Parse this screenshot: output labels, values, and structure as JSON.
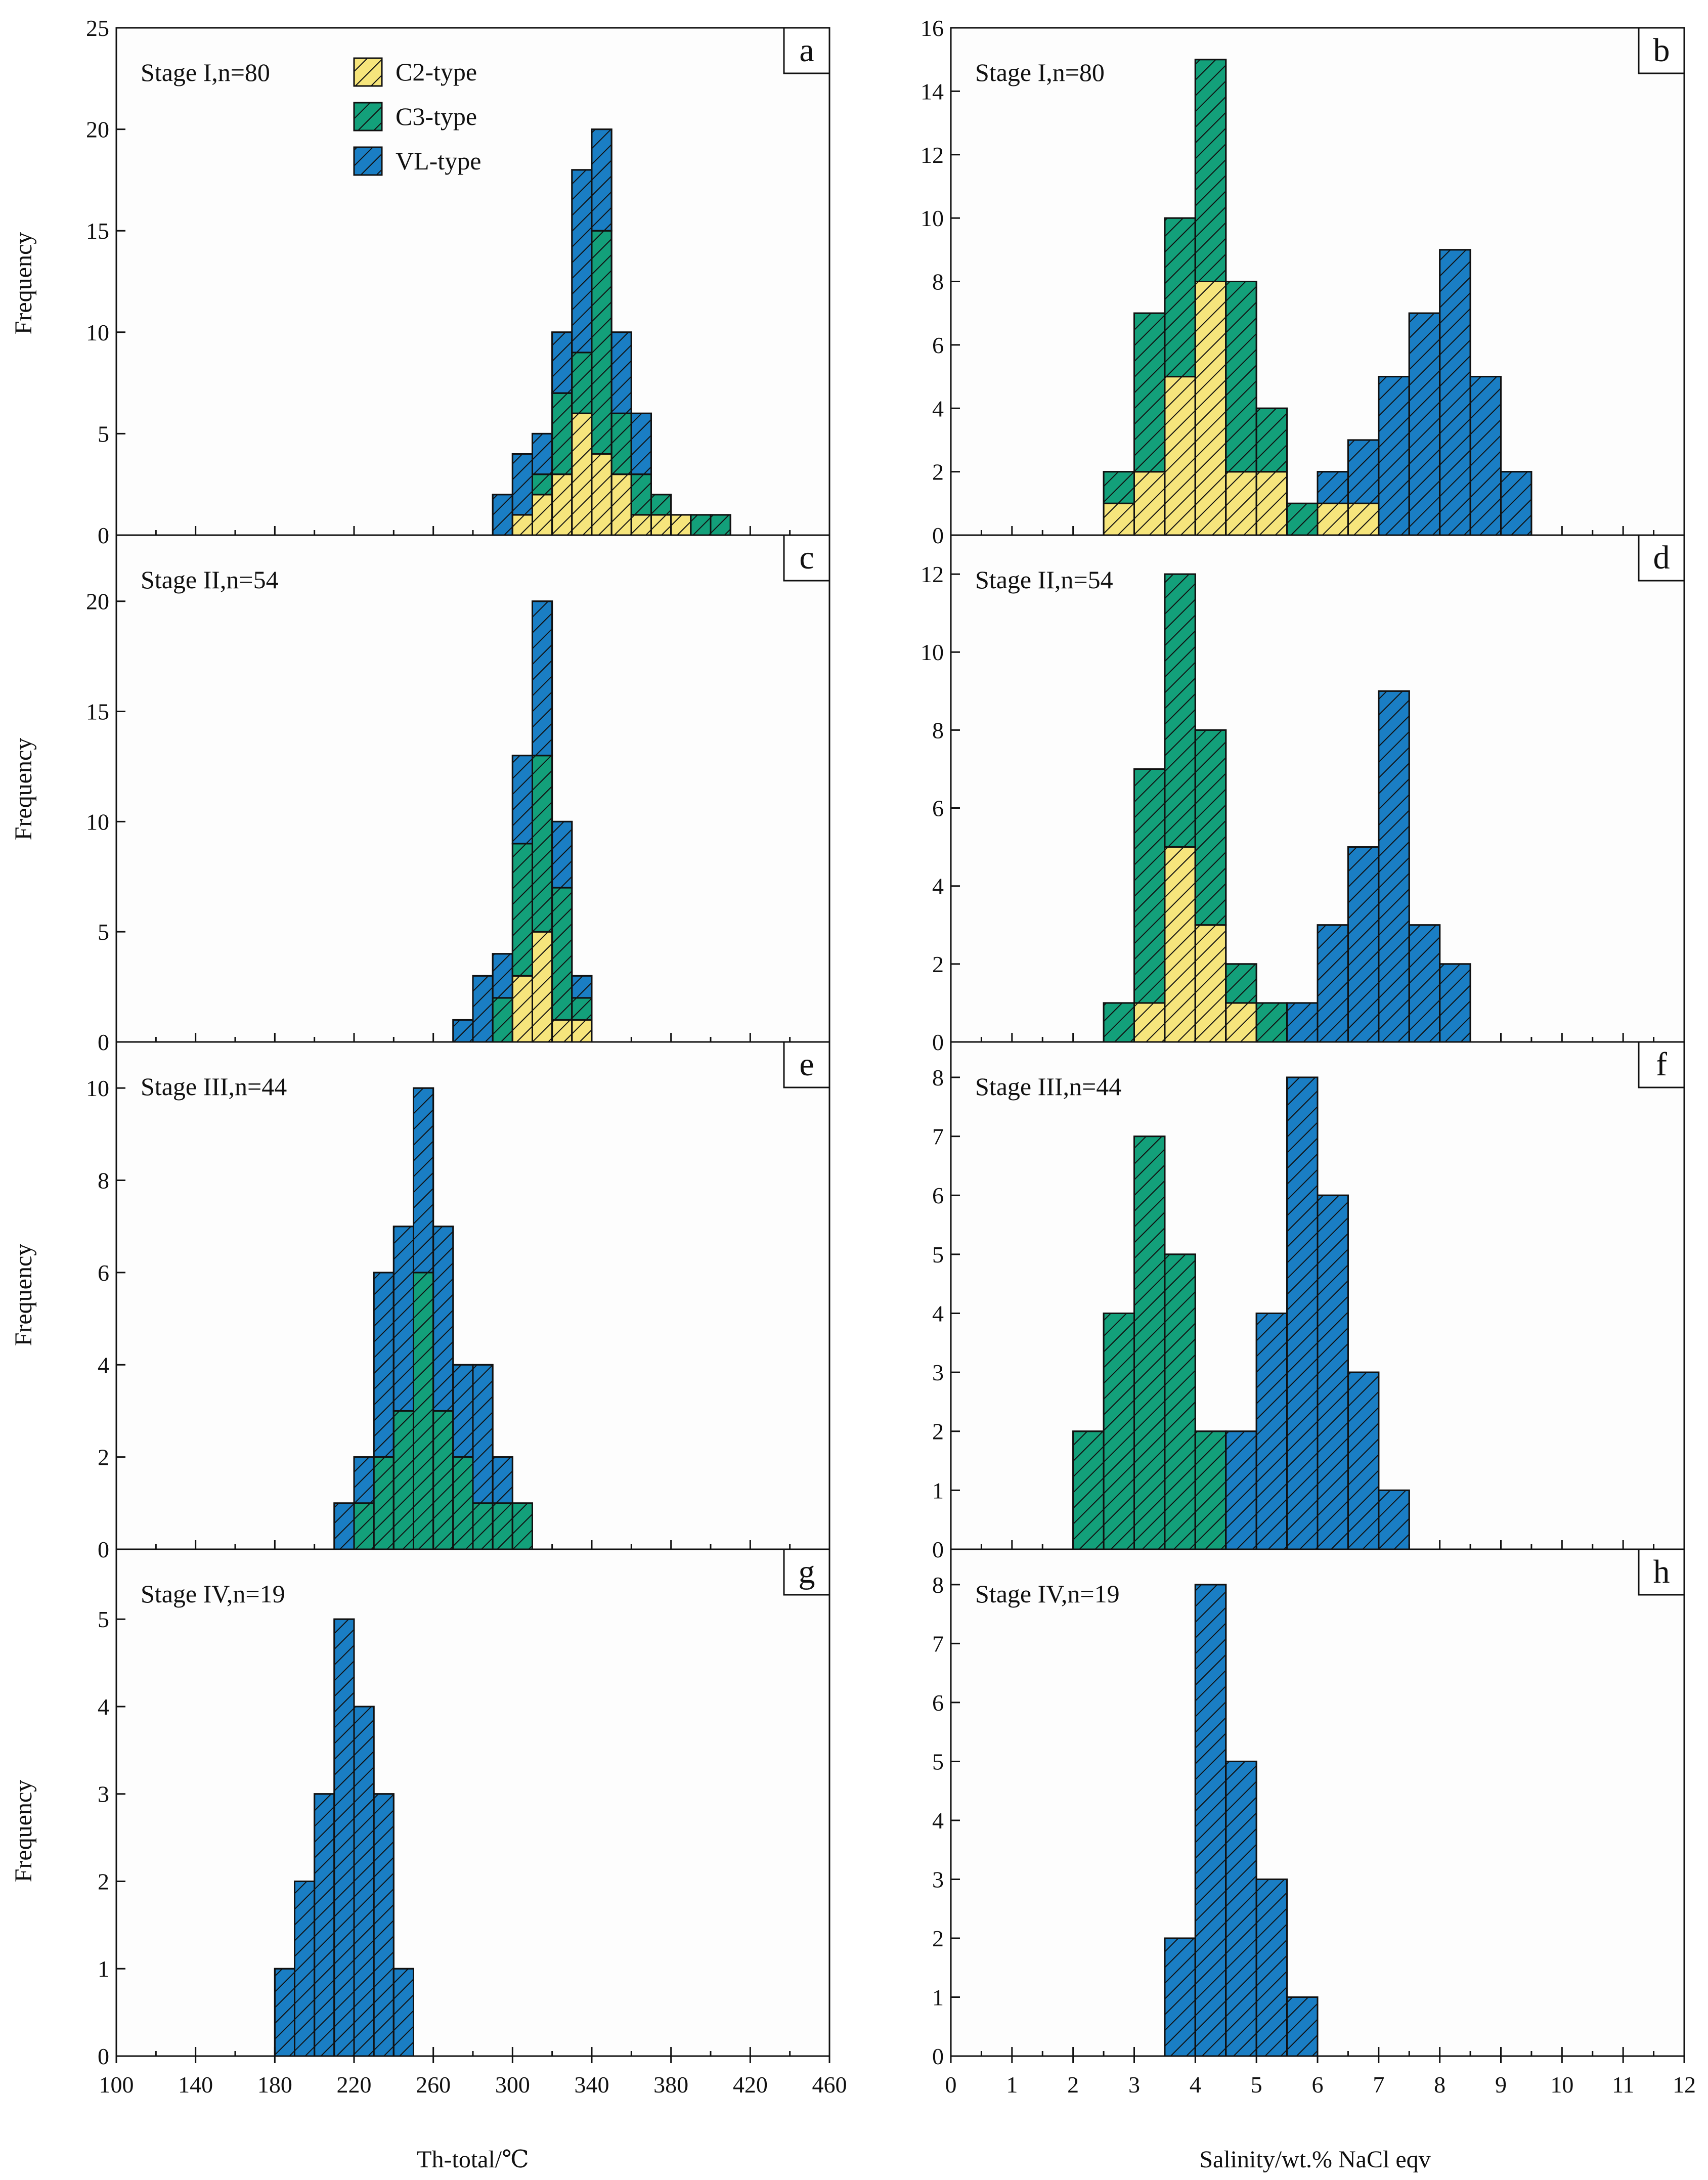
{
  "legend": [
    {
      "name": "C2-type",
      "color": "#f6e57c"
    },
    {
      "name": "C3-type",
      "color": "#13a07a"
    },
    {
      "name": "VL-type",
      "color": "#1a7ec4"
    }
  ],
  "labels": {
    "ylabel": "Frequency",
    "xlabel_left": "Th-total/℃",
    "xlabel_right": "Salinity/wt.% NaCl eqv"
  },
  "chart_data": [
    {
      "panel": "a",
      "type": "bar",
      "stacked": true,
      "title": "Stage I,n=80",
      "ylim": [
        0,
        25
      ],
      "yticks": [
        0,
        5,
        10,
        15,
        20,
        25
      ],
      "xlim": [
        100,
        460
      ],
      "bin_width": 10,
      "bin_starts": [
        290,
        300,
        310,
        320,
        330,
        340,
        350,
        360,
        370,
        380,
        390,
        400
      ],
      "series": [
        {
          "name": "C2-type",
          "values": [
            0,
            1,
            2,
            3,
            6,
            4,
            3,
            1,
            1,
            1,
            0,
            0
          ]
        },
        {
          "name": "C3-type",
          "values": [
            0,
            0,
            1,
            4,
            3,
            11,
            3,
            2,
            1,
            0,
            1,
            1
          ]
        },
        {
          "name": "VL-type",
          "values": [
            2,
            3,
            2,
            3,
            9,
            5,
            4,
            3,
            0,
            0,
            0,
            0
          ]
        }
      ]
    },
    {
      "panel": "b",
      "type": "bar",
      "stacked": true,
      "title": "Stage I,n=80",
      "ylim": [
        0,
        16
      ],
      "yticks": [
        0,
        2,
        4,
        6,
        8,
        10,
        12,
        14,
        16
      ],
      "xlim": [
        0,
        12
      ],
      "bin_width": 0.5,
      "bin_starts": [
        2.5,
        3.0,
        3.5,
        4.0,
        4.5,
        5.0,
        5.5,
        6.0,
        6.5,
        7.0,
        7.5,
        8.0,
        8.5,
        9.0
      ],
      "series": [
        {
          "name": "C2-type",
          "values": [
            1,
            2,
            5,
            8,
            2,
            2,
            0,
            1,
            1,
            0,
            0,
            0,
            0,
            0
          ]
        },
        {
          "name": "C3-type",
          "values": [
            1,
            5,
            5,
            7,
            6,
            2,
            1,
            0,
            0,
            0,
            0,
            0,
            0,
            0
          ]
        },
        {
          "name": "VL-type",
          "values": [
            0,
            0,
            0,
            0,
            0,
            0,
            0,
            1,
            2,
            5,
            7,
            9,
            5,
            2
          ]
        }
      ]
    },
    {
      "panel": "c",
      "type": "bar",
      "stacked": true,
      "title": "Stage II,n=54",
      "ylim": [
        0,
        23
      ],
      "yticks": [
        0,
        5,
        10,
        15,
        20
      ],
      "xlim": [
        100,
        460
      ],
      "bin_width": 10,
      "bin_starts": [
        270,
        280,
        290,
        300,
        310,
        320,
        330
      ],
      "series": [
        {
          "name": "C2-type",
          "values": [
            0,
            0,
            0,
            3,
            5,
            1,
            1
          ]
        },
        {
          "name": "C3-type",
          "values": [
            0,
            0,
            2,
            6,
            8,
            6,
            1
          ]
        },
        {
          "name": "VL-type",
          "values": [
            1,
            3,
            2,
            4,
            7,
            3,
            1
          ]
        }
      ]
    },
    {
      "panel": "d",
      "type": "bar",
      "stacked": true,
      "title": "Stage II,n=54",
      "ylim": [
        0,
        13
      ],
      "yticks": [
        0,
        2,
        4,
        6,
        8,
        10,
        12
      ],
      "xlim": [
        0,
        12
      ],
      "bin_width": 0.5,
      "bin_starts": [
        2.5,
        3.0,
        3.5,
        4.0,
        4.5,
        5.0,
        5.5,
        6.0,
        6.5,
        7.0,
        7.5,
        8.0
      ],
      "series": [
        {
          "name": "C2-type",
          "values": [
            0,
            1,
            5,
            3,
            1,
            0,
            0,
            0,
            0,
            0,
            0,
            0
          ]
        },
        {
          "name": "C3-type",
          "values": [
            1,
            6,
            7,
            5,
            1,
            1,
            0,
            0,
            0,
            0,
            0,
            0
          ]
        },
        {
          "name": "VL-type",
          "values": [
            0,
            0,
            0,
            0,
            0,
            0,
            1,
            3,
            5,
            9,
            3,
            2
          ]
        }
      ]
    },
    {
      "panel": "e",
      "type": "bar",
      "stacked": true,
      "title": "Stage III,n=44",
      "ylim": [
        0,
        11
      ],
      "yticks": [
        0,
        2,
        4,
        6,
        8,
        10
      ],
      "xlim": [
        100,
        460
      ],
      "bin_width": 10,
      "bin_starts": [
        210,
        220,
        230,
        240,
        250,
        260,
        270,
        280,
        290,
        300
      ],
      "series": [
        {
          "name": "C2-type",
          "values": [
            0,
            0,
            0,
            0,
            0,
            0,
            0,
            0,
            0,
            0
          ]
        },
        {
          "name": "C3-type",
          "values": [
            0,
            1,
            2,
            3,
            6,
            3,
            2,
            1,
            1,
            1
          ]
        },
        {
          "name": "VL-type",
          "values": [
            1,
            1,
            4,
            4,
            4,
            4,
            2,
            3,
            1,
            0
          ]
        }
      ]
    },
    {
      "panel": "f",
      "type": "bar",
      "stacked": true,
      "title": "Stage III,n=44",
      "ylim": [
        0,
        8.6
      ],
      "yticks": [
        0,
        1,
        2,
        3,
        4,
        5,
        6,
        7,
        8
      ],
      "xlim": [
        0,
        12
      ],
      "bin_width": 0.5,
      "bin_starts": [
        2.0,
        2.5,
        3.0,
        3.5,
        4.0,
        4.5,
        5.0,
        5.5,
        6.0,
        6.5,
        7.0
      ],
      "series": [
        {
          "name": "C2-type",
          "values": [
            0,
            0,
            0,
            0,
            0,
            0,
            0,
            0,
            0,
            0,
            0
          ]
        },
        {
          "name": "C3-type",
          "values": [
            2,
            4,
            7,
            5,
            2,
            0,
            0,
            0,
            0,
            0,
            0
          ]
        },
        {
          "name": "VL-type",
          "values": [
            0,
            0,
            0,
            0,
            0,
            2,
            4,
            8,
            6,
            3,
            1
          ]
        }
      ]
    },
    {
      "panel": "g",
      "type": "bar",
      "stacked": true,
      "title": "Stage IV,n=19",
      "ylim": [
        0,
        5.8
      ],
      "yticks": [
        0,
        1,
        2,
        3,
        4,
        5
      ],
      "xlim": [
        100,
        460
      ],
      "bin_width": 10,
      "bin_starts": [
        180,
        190,
        200,
        210,
        220,
        230,
        240
      ],
      "series": [
        {
          "name": "C2-type",
          "values": [
            0,
            0,
            0,
            0,
            0,
            0,
            0
          ]
        },
        {
          "name": "C3-type",
          "values": [
            0,
            0,
            0,
            0,
            0,
            0,
            0
          ]
        },
        {
          "name": "VL-type",
          "values": [
            1,
            2,
            3,
            5,
            4,
            3,
            1
          ]
        }
      ]
    },
    {
      "panel": "h",
      "type": "bar",
      "stacked": true,
      "title": "Stage IV,n=19",
      "ylim": [
        0,
        8.6
      ],
      "yticks": [
        0,
        1,
        2,
        3,
        4,
        5,
        6,
        7,
        8
      ],
      "xlim": [
        0,
        12
      ],
      "bin_width": 0.5,
      "bin_starts": [
        3.5,
        4.0,
        4.5,
        5.0,
        5.5
      ],
      "series": [
        {
          "name": "C2-type",
          "values": [
            0,
            0,
            0,
            0,
            0
          ]
        },
        {
          "name": "C3-type",
          "values": [
            0,
            0,
            0,
            0,
            0
          ]
        },
        {
          "name": "VL-type",
          "values": [
            2,
            8,
            5,
            3,
            1
          ]
        }
      ]
    }
  ],
  "x_ticks_left": [
    100,
    140,
    180,
    220,
    260,
    300,
    340,
    380,
    420,
    460
  ],
  "x_ticks_right": [
    0,
    1,
    2,
    3,
    4,
    5,
    6,
    7,
    8,
    9,
    10,
    11,
    12
  ]
}
